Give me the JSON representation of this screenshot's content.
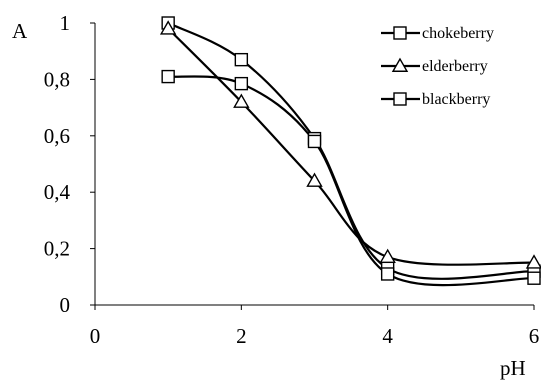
{
  "chart_data": {
    "type": "line",
    "xlabel": "pH",
    "ylabel": "A",
    "xlim": [
      0,
      6
    ],
    "ylim": [
      0,
      1
    ],
    "x_ticks": [
      "0",
      "2",
      "4",
      "6"
    ],
    "y_ticks": [
      "0",
      "0,2",
      "0,4",
      "0,6",
      "0,8",
      "1"
    ],
    "grid": false,
    "legend_position": "top-right",
    "series": [
      {
        "name": "chokeberry",
        "marker": "square",
        "x": [
          1,
          2,
          3,
          4,
          6
        ],
        "y": [
          1.0,
          0.87,
          0.59,
          0.13,
          0.12
        ]
      },
      {
        "name": "elderberry",
        "marker": "triangle",
        "x": [
          1,
          2,
          3,
          4,
          6
        ],
        "y": [
          0.98,
          0.72,
          0.44,
          0.17,
          0.15
        ]
      },
      {
        "name": "blackberry",
        "marker": "square",
        "x": [
          1,
          2,
          3,
          4,
          6
        ],
        "y": [
          0.81,
          0.785,
          0.58,
          0.11,
          0.095
        ]
      }
    ]
  }
}
